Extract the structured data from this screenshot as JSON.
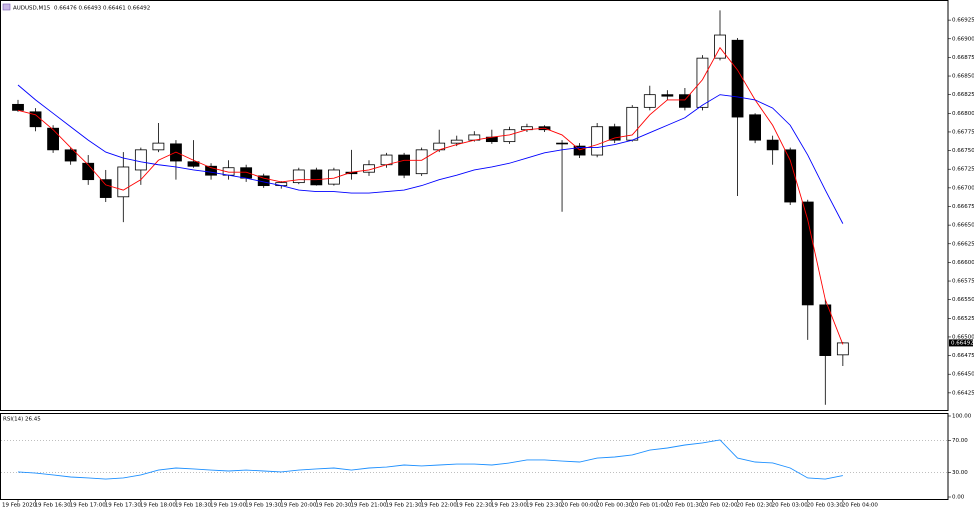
{
  "chart_data": [
    {
      "type": "candlestick",
      "title": "AUDUSD,M15",
      "categories": [
        "19 Feb 2020",
        "19 Feb 16:30",
        null,
        "19 Feb 17:00",
        null,
        "19 Feb 17:30",
        null,
        "19 Feb 18:00",
        null,
        "19 Feb 18:30",
        null,
        "19 Feb 19:00",
        null,
        "19 Feb 19:30",
        null,
        "19 Feb 20:00",
        null,
        "19 Feb 20:30",
        null,
        "19 Feb 21:00",
        null,
        "19 Feb 21:30",
        null,
        "19 Feb 22:00",
        null,
        "19 Feb 22:30",
        null,
        "19 Feb 23:00",
        null,
        "19 Feb 23:30",
        null,
        "20 Feb 00:00",
        null,
        "20 Feb 00:30",
        null,
        "20 Feb 01:00",
        null,
        "20 Feb 01:30",
        null,
        "20 Feb 02:00",
        null,
        "20 Feb 02:30",
        null,
        "20 Feb 03:00",
        null,
        "20 Feb 03:30",
        null,
        "20 Feb 04:00"
      ],
      "open": [
        0.66812,
        0.66802,
        0.6678,
        0.66751,
        0.66733,
        0.66711,
        0.66688,
        0.66724,
        0.66751,
        0.66759,
        0.66735,
        0.66729,
        0.66717,
        0.66727,
        0.66716,
        0.66703,
        0.66707,
        0.66724,
        0.66705,
        0.66721,
        0.66721,
        0.66731,
        0.66744,
        0.66719,
        0.66751,
        0.6676,
        0.66764,
        0.66768,
        0.66762,
        0.66778,
        0.66782,
        0.6676,
        0.66756,
        0.66744,
        0.66782,
        0.66764,
        0.66808,
        0.66825,
        0.66825,
        0.66808,
        0.66874,
        0.66898,
        0.66798,
        0.66764,
        0.66751,
        0.66681,
        0.66543,
        0.66476
      ],
      "high": [
        0.66818,
        0.66807,
        0.66784,
        0.66754,
        0.66744,
        0.66724,
        0.66748,
        0.66754,
        0.66787,
        0.66764,
        0.66764,
        0.66733,
        0.66737,
        0.66731,
        0.66719,
        0.66709,
        0.66727,
        0.66727,
        0.66727,
        0.66751,
        0.66737,
        0.66747,
        0.66747,
        0.66754,
        0.66778,
        0.6677,
        0.66776,
        0.66778,
        0.66782,
        0.66786,
        0.66784,
        0.66764,
        0.6676,
        0.66787,
        0.66786,
        0.66811,
        0.66837,
        0.66831,
        0.66834,
        0.66878,
        0.66938,
        0.66901,
        0.668,
        0.6677,
        0.66754,
        0.66684,
        0.6655,
        0.66493
      ],
      "low": [
        0.66802,
        0.66776,
        0.66747,
        0.66731,
        0.66704,
        0.66681,
        0.66654,
        0.66704,
        0.66748,
        0.66711,
        0.66727,
        0.66711,
        0.66711,
        0.66708,
        0.667,
        0.66699,
        0.66705,
        0.66703,
        0.66703,
        0.66711,
        0.66716,
        0.66727,
        0.66713,
        0.66716,
        0.66748,
        0.66756,
        0.66762,
        0.66759,
        0.66759,
        0.66775,
        0.66775,
        0.66668,
        0.6674,
        0.66741,
        0.6676,
        0.66762,
        0.66804,
        0.66818,
        0.66804,
        0.66804,
        0.66871,
        0.66689,
        0.6676,
        0.66731,
        0.66677,
        0.66496,
        0.66409,
        0.66461
      ],
      "close": [
        0.66804,
        0.66782,
        0.66751,
        0.66736,
        0.66711,
        0.66687,
        0.66728,
        0.66751,
        0.6676,
        0.66736,
        0.66729,
        0.66717,
        0.66727,
        0.66713,
        0.66703,
        0.66707,
        0.66724,
        0.66704,
        0.66724,
        0.66719,
        0.66731,
        0.66744,
        0.66717,
        0.66751,
        0.6676,
        0.66764,
        0.66771,
        0.66762,
        0.66778,
        0.66782,
        0.66778,
        0.66759,
        0.66744,
        0.66782,
        0.66764,
        0.66808,
        0.66825,
        0.66823,
        0.66808,
        0.66874,
        0.66905,
        0.66795,
        0.66764,
        0.66751,
        0.66681,
        0.66543,
        0.66475,
        0.66492
      ],
      "up_color": "#ffffff",
      "down_color": "#000000",
      "series": [
        {
          "color": "#ff0000",
          "values": [
            0.66804,
            0.66798,
            0.66778,
            0.66754,
            0.66731,
            0.66704,
            0.66697,
            0.66711,
            0.66737,
            0.66748,
            0.66737,
            0.66727,
            0.66721,
            0.66721,
            0.66713,
            0.66708,
            0.66711,
            0.66711,
            0.66713,
            0.66721,
            0.66724,
            0.66731,
            0.66737,
            0.66737,
            0.66751,
            0.66758,
            0.66764,
            0.66768,
            0.66771,
            0.66778,
            0.6678,
            0.66771,
            0.66751,
            0.66758,
            0.66767,
            0.66771,
            0.66798,
            0.66818,
            0.66818,
            0.66845,
            0.66888,
            0.66858,
            0.66818,
            0.66784,
            0.66737,
            0.66657,
            0.6655,
            0.6649
          ]
        },
        {
          "color": "#0000ff",
          "values": [
            0.66838,
            0.66818,
            0.668,
            0.66782,
            0.66764,
            0.66748,
            0.6674,
            0.66735,
            0.66731,
            0.66728,
            0.66724,
            0.66721,
            0.66717,
            0.66713,
            0.66708,
            0.66703,
            0.66697,
            0.66695,
            0.66695,
            0.66693,
            0.66693,
            0.66695,
            0.66697,
            0.66703,
            0.66711,
            0.66717,
            0.66724,
            0.66728,
            0.66733,
            0.6674,
            0.66747,
            0.66751,
            0.66754,
            0.66754,
            0.66758,
            0.66764,
            0.66774,
            0.66784,
            0.66794,
            0.66811,
            0.66825,
            0.66822,
            0.66818,
            0.66807,
            0.66784,
            0.66744,
            0.66697,
            0.66652
          ]
        }
      ],
      "ylim": [
        0.66402,
        0.66952
      ],
      "yticks": [
        0.66925,
        {
          "value": 0.669,
          "label": "0.66900"
        },
        0.66875,
        {
          "value": 0.6685,
          "label": "0.66850"
        },
        0.66825,
        {
          "value": 0.668,
          "label": "0.66800"
        },
        0.66775,
        {
          "value": 0.6675,
          "label": "0.66750"
        },
        0.66725,
        {
          "value": 0.667,
          "label": "0.66700"
        },
        0.66675,
        {
          "value": 0.6665,
          "label": "0.66650"
        },
        0.66625,
        {
          "value": 0.666,
          "label": "0.66600"
        },
        0.66575,
        {
          "value": 0.6655,
          "label": "0.66550"
        },
        0.66525,
        {
          "value": 0.665,
          "label": "0.66500"
        },
        0.66475,
        {
          "value": 0.6645,
          "label": "0.66450"
        },
        0.66425
      ]
    },
    {
      "type": "line",
      "title": "RSI(14)",
      "series": [
        {
          "color": "#1e90ff",
          "values": [
            30.9,
            29.6,
            27.2,
            24.7,
            23.5,
            22.2,
            23.5,
            27.2,
            33.3,
            35.8,
            34.6,
            33.3,
            32.1,
            33.3,
            32.1,
            30.9,
            33.3,
            34.6,
            35.8,
            33.3,
            35.8,
            37.0,
            39.5,
            38.3,
            39.5,
            40.7,
            40.7,
            39.5,
            42.0,
            45.7,
            45.7,
            44.4,
            43.2,
            48.1,
            49.4,
            51.9,
            58.0,
            60.5,
            64.2,
            66.7,
            70.4,
            48.1,
            43.2,
            42.0,
            35.8,
            23.5,
            22.2,
            26.45
          ]
        }
      ],
      "ylim": [
        0,
        100
      ],
      "yticks": [
        {
          "value": 100,
          "label": "100.00"
        },
        {
          "value": 70,
          "label": "70.00"
        },
        {
          "value": 30,
          "label": "30.00"
        },
        {
          "value": 0,
          "label": "0.00"
        }
      ],
      "levels": [
        70,
        30
      ]
    }
  ]
}
